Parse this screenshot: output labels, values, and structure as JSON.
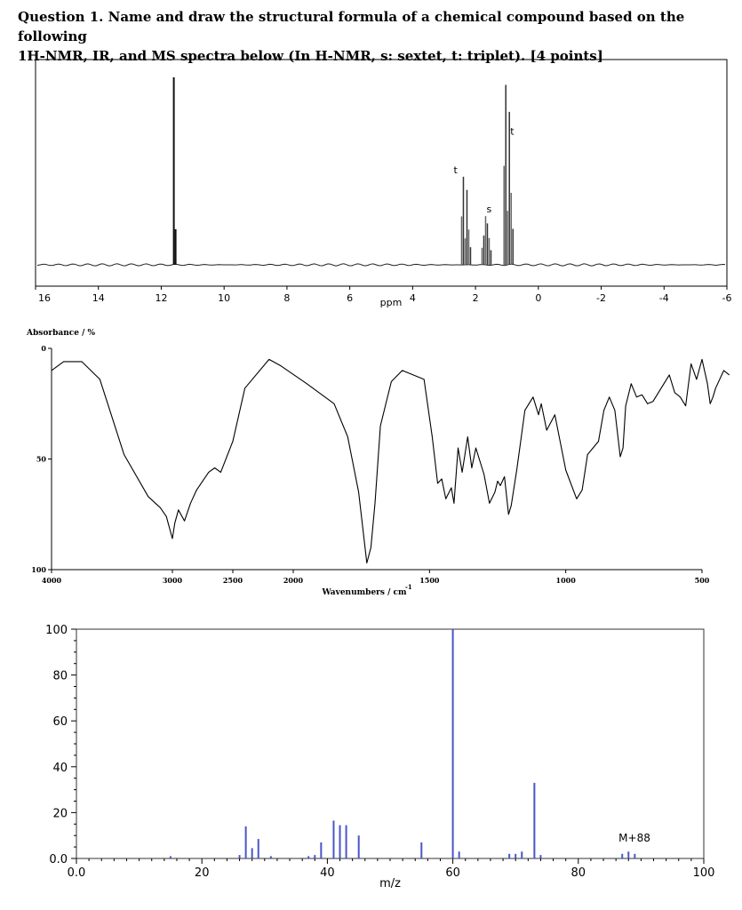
{
  "question": {
    "line1": "Question 1. Name and draw the structural formula of a chemical compound based on the following",
    "line2": "1H-NMR, IR, and MS spectra below (In H-NMR, s: sextet, t: triplet).  [4 points]"
  },
  "chart_data": [
    {
      "type": "line",
      "name": "1H-NMR",
      "xlabel": "ppm",
      "xlim": [
        16,
        -6
      ],
      "ticks": [
        "16",
        "14",
        "12",
        "10",
        "8",
        "6",
        "4",
        "2",
        "0",
        "-2",
        "-4",
        "-6"
      ],
      "tick_values": [
        16,
        14,
        12,
        10,
        8,
        6,
        4,
        2,
        0,
        -2,
        -4,
        -6
      ],
      "peaks": [
        {
          "ppm": 11.6,
          "rel_height": 1.0,
          "label": ""
        },
        {
          "ppm": 2.3,
          "rel_height": 0.47,
          "label": "t"
        },
        {
          "ppm": 1.65,
          "rel_height": 0.26,
          "label": "s"
        },
        {
          "ppm": 0.95,
          "rel_height": 0.96,
          "label": "t"
        }
      ],
      "annotations": [
        "t",
        "s",
        "t"
      ]
    },
    {
      "type": "line",
      "name": "IR",
      "ylabel": "Absorbance / %",
      "xlabel": "Wavenumbers / cm",
      "xlabel_sup": "-1",
      "ylim": [
        100,
        0
      ],
      "yticks": [
        "0",
        "50",
        "100"
      ],
      "xticks": [
        "4000",
        "3000",
        "2500",
        "2000",
        "1500",
        "1000",
        "500"
      ],
      "xtick_values": [
        4000,
        3000,
        2500,
        2000,
        1500,
        1000,
        500
      ],
      "x": [
        4000,
        3900,
        3750,
        3600,
        3400,
        3200,
        3100,
        3050,
        3000,
        2980,
        2950,
        2900,
        2850,
        2800,
        2700,
        2650,
        2600,
        2500,
        2400,
        2200,
        2100,
        1950,
        1850,
        1800,
        1760,
        1730,
        1715,
        1700,
        1680,
        1640,
        1600,
        1520,
        1490,
        1470,
        1455,
        1440,
        1420,
        1410,
        1395,
        1380,
        1360,
        1345,
        1330,
        1300,
        1280,
        1260,
        1250,
        1240,
        1225,
        1210,
        1200,
        1180,
        1150,
        1120,
        1100,
        1090,
        1070,
        1040,
        1000,
        960,
        940,
        920,
        900,
        880,
        860,
        840,
        820,
        800,
        790,
        780,
        760,
        740,
        720,
        700,
        680,
        650,
        620,
        600,
        580,
        560,
        540,
        520,
        500,
        480,
        470,
        460,
        450,
        420,
        400
      ],
      "y": [
        10,
        6,
        6,
        14,
        48,
        67,
        72,
        76,
        86,
        79,
        73,
        78,
        70,
        64,
        56,
        54,
        56,
        42,
        18,
        5,
        8,
        16,
        25,
        40,
        65,
        97,
        90,
        70,
        35,
        15,
        10,
        14,
        40,
        61,
        59,
        68,
        63,
        70,
        45,
        56,
        40,
        54,
        45,
        57,
        70,
        65,
        60,
        62,
        58,
        75,
        71,
        55,
        28,
        22,
        30,
        25,
        37,
        30,
        55,
        68,
        64,
        48,
        45,
        42,
        28,
        22,
        28,
        49,
        45,
        26,
        16,
        22,
        21,
        25,
        24,
        18,
        12,
        20,
        22,
        26,
        7,
        14,
        5,
        16,
        25,
        22,
        18,
        10,
        12
      ],
      "annotations": [
        "1H-NMR",
        "IR",
        "MS"
      ]
    },
    {
      "type": "bar",
      "name": "MS",
      "xlabel": "m/z",
      "xlim": [
        0,
        100
      ],
      "ylim": [
        0,
        100
      ],
      "xticks": [
        "0.0",
        "20",
        "40",
        "60",
        "80",
        "100"
      ],
      "xtick_values": [
        0,
        20,
        40,
        60,
        80,
        100
      ],
      "yticks": [
        "0.0",
        "20",
        "40",
        "60",
        "80",
        "100"
      ],
      "ytick_values": [
        0,
        20,
        40,
        60,
        80,
        100
      ],
      "x": [
        15,
        26,
        27,
        28,
        29,
        31,
        37,
        38,
        39,
        41,
        42,
        43,
        45,
        55,
        60,
        61,
        69,
        70,
        71,
        73,
        74,
        87,
        88,
        89
      ],
      "values": [
        1,
        1.5,
        14,
        4.5,
        8.5,
        1,
        1,
        1.5,
        7,
        16.5,
        14.5,
        14.5,
        10,
        7,
        100,
        3,
        2,
        2,
        3,
        33,
        1.5,
        2,
        3,
        2
      ],
      "annotation": "M+88"
    }
  ],
  "colors": {
    "ms_bar": "#4a55c8",
    "axis": "#000000",
    "nmr_peak": "#111111"
  }
}
